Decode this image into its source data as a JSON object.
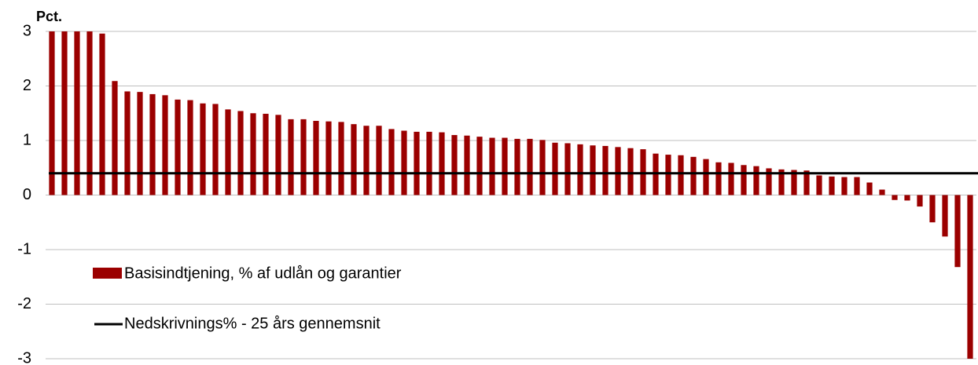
{
  "chart_data": {
    "type": "bar",
    "title": "Pct.",
    "categories": [
      null,
      null,
      null,
      null,
      null,
      null,
      null,
      null,
      null,
      null,
      null,
      null,
      null,
      null,
      null,
      null,
      null,
      null,
      null,
      null,
      null,
      null,
      null,
      null,
      null,
      null,
      null,
      null,
      null,
      null,
      null,
      null,
      null,
      null,
      null,
      null,
      null,
      null,
      null,
      null,
      null,
      null,
      null,
      null,
      null,
      null,
      null,
      null,
      null,
      null,
      null,
      null,
      null,
      null,
      null,
      null,
      null,
      null,
      null,
      null,
      null,
      null,
      null,
      null,
      null,
      null,
      null,
      null,
      null,
      null,
      null,
      null,
      null,
      null
    ],
    "series": [
      {
        "name": "Basisindtjening, % af udlån og garantier",
        "color": "#9b0000",
        "values": [
          3,
          3,
          3,
          3,
          2.96,
          2.09,
          1.9,
          1.89,
          1.85,
          1.83,
          1.75,
          1.74,
          1.68,
          1.67,
          1.57,
          1.54,
          1.5,
          1.49,
          1.47,
          1.39,
          1.39,
          1.36,
          1.35,
          1.34,
          1.3,
          1.27,
          1.27,
          1.21,
          1.18,
          1.16,
          1.16,
          1.15,
          1.1,
          1.09,
          1.07,
          1.05,
          1.05,
          1.03,
          1.03,
          1.01,
          0.96,
          0.95,
          0.93,
          0.91,
          0.9,
          0.88,
          0.86,
          0.84,
          0.76,
          0.74,
          0.73,
          0.7,
          0.66,
          0.6,
          0.59,
          0.55,
          0.53,
          0.49,
          0.47,
          0.46,
          0.45,
          0.36,
          0.34,
          0.33,
          0.33,
          0.23,
          0.1,
          -0.09,
          -0.1,
          -0.21,
          -0.5,
          -0.76,
          -1.32,
          -3
        ]
      }
    ],
    "reference_line": {
      "name": "Nedskrivnings% - 25 års gennemsnit",
      "value": 0.4,
      "color": "#000000"
    },
    "ylim": [
      -3,
      3
    ],
    "yticks": [
      -3,
      -2,
      -1,
      0,
      1,
      2,
      3
    ],
    "grid": true
  }
}
